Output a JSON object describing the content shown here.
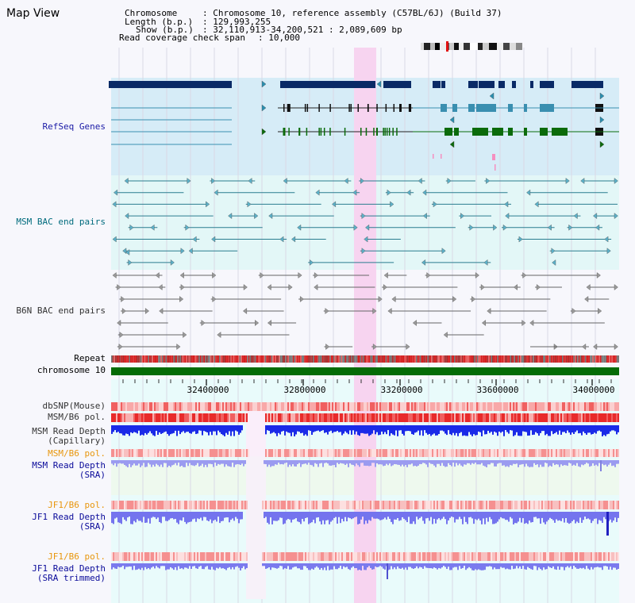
{
  "page_title": "Map View",
  "info": {
    "chromosome_key": "Chromosome",
    "chromosome_val": ": Chromosome 10, reference assembly (C57BL/6J) (Build 37)",
    "length_key": "Length (b.p.)",
    "length_val": ": 129,993,255",
    "show_key": "Show (b.p.)",
    "show_val": ": 32,110,913-34,200,521 : 2,089,609 bp",
    "coverage_key": "Read coverage check span",
    "coverage_val": ": 10,000"
  },
  "tracks": {
    "refseq": "RefSeq Genes",
    "msm_bac": "MSM BAC end pairs",
    "b6n_bac": "B6N BAC end pairs",
    "repeat": "Repeat",
    "chromosome": "chromosome 10",
    "dbsnp": "dbSNP(Mouse)",
    "msm_b6_pol_1": "MSM/B6 pol.",
    "msm_read_depth_cap_1": "MSM Read Depth",
    "msm_read_depth_cap_2": "(Capillary)",
    "msm_b6_pol_2": "MSM/B6 pol.",
    "msm_read_depth_sra_1": "MSM Read Depth",
    "msm_read_depth_sra_2": "(SRA)",
    "jf1_b6_pol_1": "JF1/B6 pol.",
    "jf1_read_depth_sra_1": "JF1 Read Depth",
    "jf1_read_depth_sra_2": "(SRA)",
    "jf1_b6_pol_2": "JF1/B6 pol.",
    "jf1_read_depth_trim_1": "JF1 Read Depth",
    "jf1_read_depth_trim_2": "(SRA trimmed)"
  },
  "axis": {
    "ticks": [
      "32400000",
      "32800000",
      "33200000",
      "33600000",
      "34000000"
    ]
  },
  "colors": {
    "refseq_bg": "#d6ecf7",
    "bac_bg": "#e3f7f7",
    "highlight": "#f7d4f0",
    "refseq_dark": "#0a2a66",
    "refseq_mid": "#3a8fb0",
    "refseq_green": "#0b6b0b",
    "bac_teal": "#2a7d8f",
    "b6n_gray": "#666666",
    "chrom_green": "#066b06",
    "pol_red": "#e83030",
    "depth_blue": "#2020e0",
    "depth_light": "#8080f0"
  }
}
